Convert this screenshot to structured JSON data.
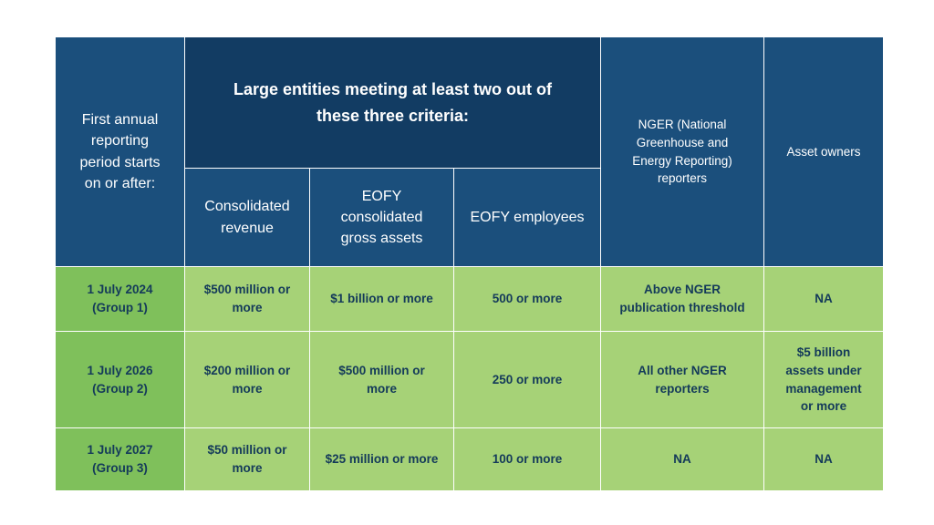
{
  "header": {
    "first_period": "First annual\nreporting\nperiod starts\non or after:",
    "criteria_group": "Large entities meeting at least two out of\nthese three criteria:",
    "consolidated_revenue": "Consolidated\nrevenue",
    "gross_assets": "EOFY\nconsolidated\ngross assets",
    "employees": "EOFY employees",
    "nger": "NGER (National\nGreenhouse and\nEnergy Reporting)\nreporters",
    "asset_owners": "Asset owners"
  },
  "rows": [
    {
      "period": "1 July 2024\n(Group 1)",
      "revenue": "$500 million or\nmore",
      "assets": "$1 billion or more",
      "employees": "500 or more",
      "nger": "Above NGER\npublication threshold",
      "asset_owners": "NA"
    },
    {
      "period": "1 July 2026\n(Group 2)",
      "revenue": "$200 million or\nmore",
      "assets": "$500 million or\nmore",
      "employees": "250 or more",
      "nger": "All other NGER\nreporters",
      "asset_owners": "$5 billion\nassets under\nmanagement\nor more"
    },
    {
      "period": "1 July 2027\n(Group 3)",
      "revenue": "$50 million or\nmore",
      "assets": "$25 million or more",
      "employees": "100 or more",
      "nger": "NA",
      "asset_owners": "NA"
    }
  ]
}
